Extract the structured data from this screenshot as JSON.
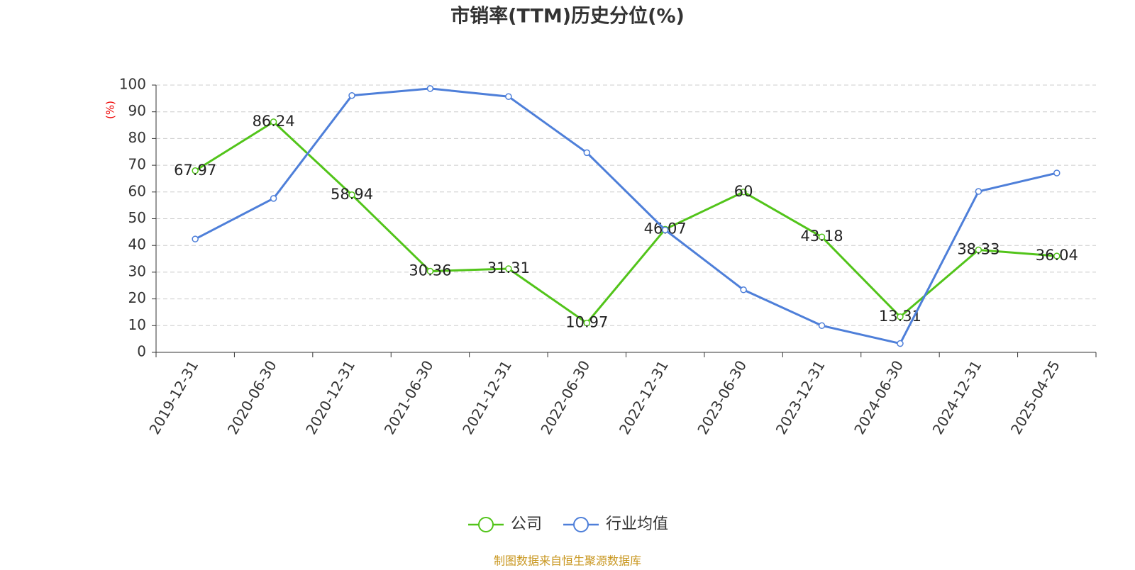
{
  "chart_data": {
    "type": "line",
    "title": "市销率(TTM)历史分位(%)",
    "y_label": "(%)",
    "categories": [
      "2019-12-31",
      "2020-06-30",
      "2020-12-31",
      "2021-06-30",
      "2021-12-31",
      "2022-06-30",
      "2022-12-31",
      "2023-06-30",
      "2023-12-31",
      "2024-06-30",
      "2024-12-31",
      "2025-04-25"
    ],
    "series": [
      {
        "name": "公司",
        "color": "#52c41a",
        "show_labels": true,
        "values": [
          67.97,
          86.24,
          58.94,
          30.36,
          31.31,
          10.97,
          46.07,
          60,
          43.18,
          13.31,
          38.33,
          36.04
        ]
      },
      {
        "name": "行业均值",
        "color": "#4e7fd9",
        "show_labels": false,
        "values": [
          42.4,
          57.6,
          96.1,
          98.7,
          95.7,
          74.7,
          45.8,
          23.4,
          10,
          3.3,
          60.2,
          67.1
        ]
      }
    ],
    "ylim": [
      0,
      100
    ],
    "yticks": [
      0,
      10,
      20,
      30,
      40,
      50,
      60,
      70,
      80,
      90,
      100
    ],
    "grid": true,
    "legend": "bottom",
    "source": "制图数据来自恒生聚源数据库"
  }
}
